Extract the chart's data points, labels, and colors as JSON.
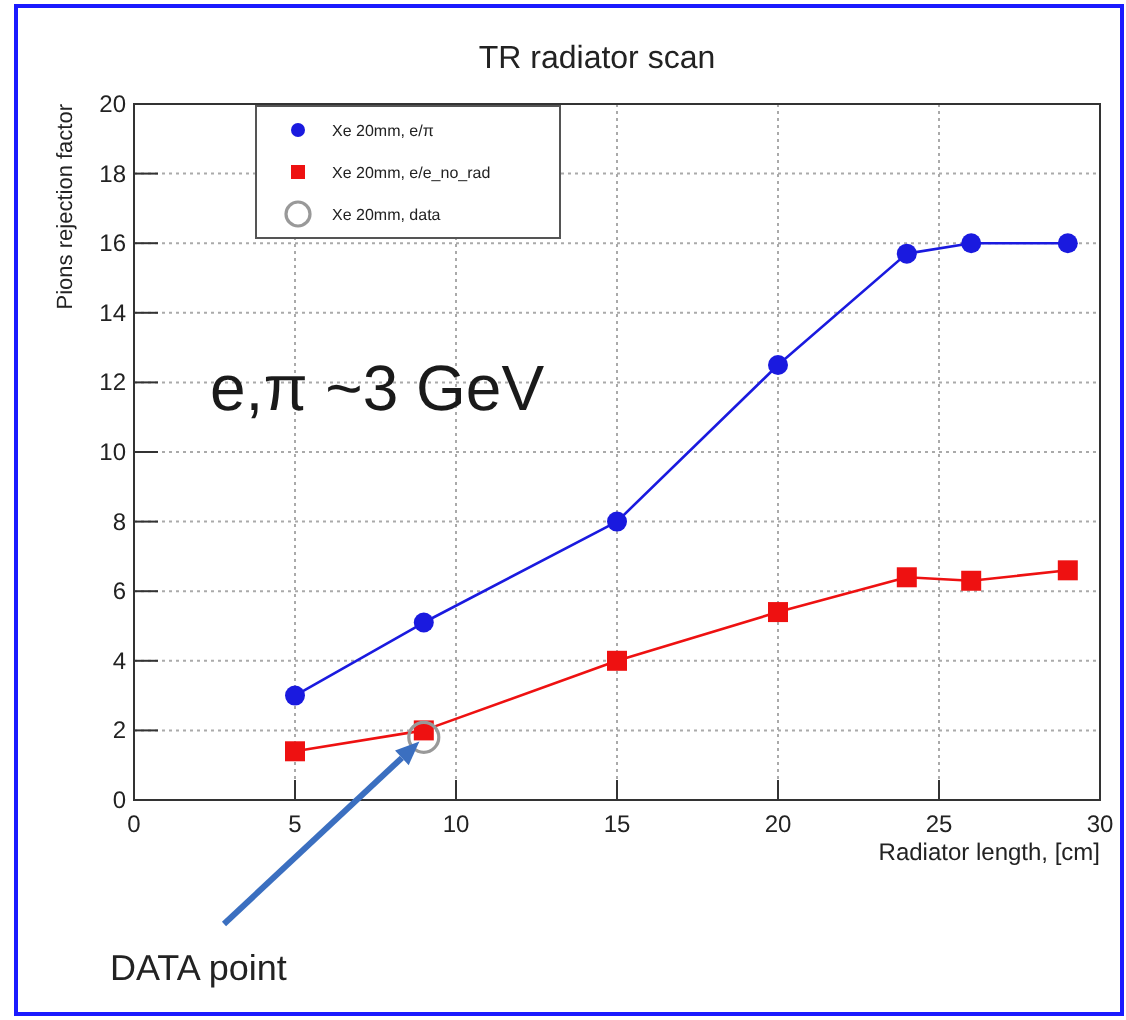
{
  "chart_data": {
    "type": "line",
    "title": "TR radiator scan",
    "xlabel": "Radiator length, [cm]",
    "ylabel": "Pions rejection factor",
    "x": [
      5,
      9,
      15,
      20,
      24,
      26,
      29
    ],
    "series": [
      {
        "name": "Xe 20mm, e/π",
        "color": "#1a1adf",
        "marker": "circle",
        "values": [
          3.0,
          5.1,
          8.0,
          12.5,
          15.7,
          16.0,
          16.0
        ]
      },
      {
        "name": "Xe 20mm, e/e_no_rad",
        "color": "#ee1111",
        "marker": "square",
        "values": [
          1.4,
          2.0,
          4.0,
          5.4,
          6.4,
          6.3,
          6.6
        ]
      },
      {
        "name": "Xe 20mm, data",
        "type": "scatter",
        "color": "#999999",
        "marker": "circle",
        "x": [
          9
        ],
        "values": [
          1.8
        ]
      }
    ],
    "xlim": [
      0,
      30
    ],
    "xticks": [
      0,
      5,
      10,
      15,
      20,
      25,
      30
    ],
    "ylim": [
      0,
      20
    ],
    "yticks": [
      0,
      2,
      4,
      6,
      8,
      10,
      12,
      14,
      16,
      18,
      20
    ],
    "grid": true,
    "legend": "top left",
    "line_style": "solid",
    "annotations": [
      "e,π ~3 GeV",
      "DATA point"
    ]
  }
}
